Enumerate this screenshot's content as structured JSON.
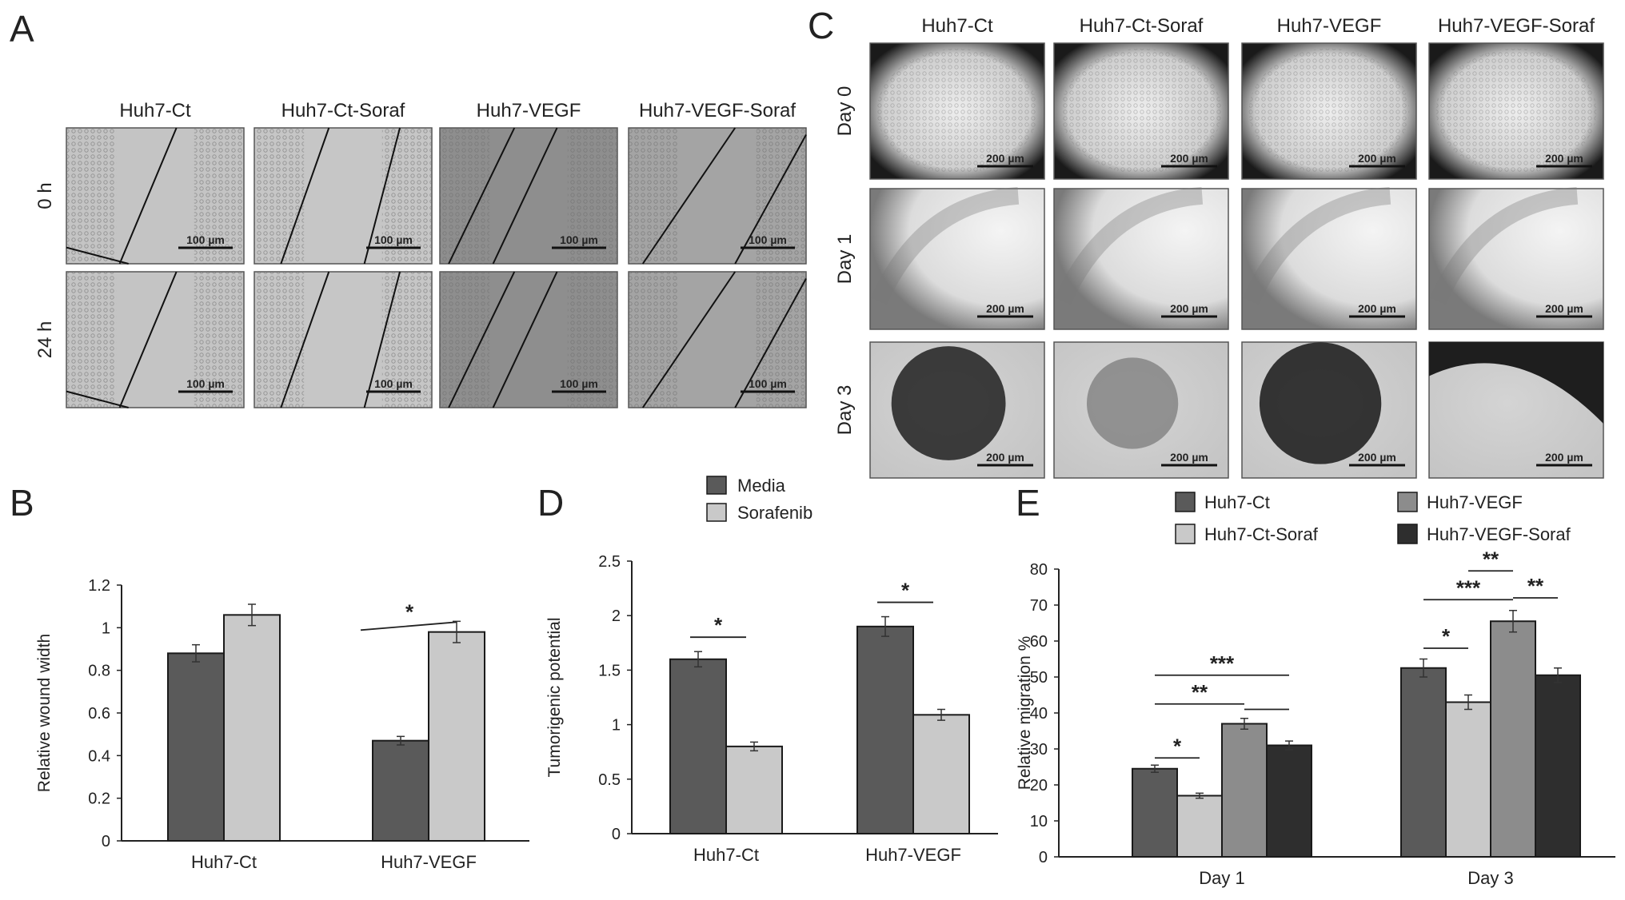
{
  "panels": {
    "A": {
      "letter": "A",
      "columns": [
        "Huh7-Ct",
        "Huh7-Ct-Soraf",
        "Huh7-VEGF",
        "Huh7-VEGF-Soraf"
      ],
      "rows": [
        "0 h",
        "24 h"
      ],
      "scale_bar": "100 µm",
      "image_tones": [
        "#c4c4c4",
        "#c6c6c6",
        "#8e8e8e",
        "#a4a4a4"
      ]
    },
    "C": {
      "letter": "C",
      "columns": [
        "Huh7-Ct",
        "Huh7-Ct-Soraf",
        "Huh7-VEGF",
        "Huh7-VEGF-Soraf"
      ],
      "rows": [
        "Day 0",
        "Day 1",
        "Day 3"
      ],
      "scale_bar": "200 µm"
    },
    "B": {
      "letter": "B"
    },
    "D": {
      "letter": "D"
    },
    "E": {
      "letter": "E"
    }
  },
  "chart_data": [
    {
      "panel": "B",
      "type": "bar",
      "ylabel": "Relative wound width",
      "xlabel": "",
      "ylim": [
        0,
        1.2
      ],
      "yticks": [
        "0",
        "0.2",
        "0.4",
        "0.6",
        "0.8",
        "1",
        "1.2"
      ],
      "categories": [
        "Huh7-Ct",
        "Huh7-VEGF"
      ],
      "series": [
        {
          "values": [
            0.88,
            0.47
          ],
          "errors": [
            0.04,
            0.02
          ],
          "color": "#5a5a5a"
        },
        {
          "values": [
            1.06,
            0.98
          ],
          "errors": [
            0.05,
            0.05
          ],
          "color": "#c9c9c9"
        }
      ],
      "significance": [
        {
          "category": 1,
          "label": "*"
        }
      ]
    },
    {
      "panel": "D",
      "type": "bar",
      "ylabel": "Tumorigenic potential",
      "xlabel": "",
      "ylim": [
        0,
        2.5
      ],
      "yticks": [
        "0",
        "0.5",
        "1",
        "1.5",
        "2",
        "2.5"
      ],
      "categories": [
        "Huh7-Ct",
        "Huh7-VEGF"
      ],
      "legend": [
        "Media",
        "Sorafenib"
      ],
      "series": [
        {
          "name": "Media",
          "values": [
            1.6,
            1.9
          ],
          "errors": [
            0.07,
            0.09
          ],
          "color": "#5a5a5a"
        },
        {
          "name": "Sorafenib",
          "values": [
            0.8,
            1.09
          ],
          "errors": [
            0.04,
            0.05
          ],
          "color": "#c9c9c9"
        }
      ],
      "significance": [
        {
          "category": 0,
          "label": "*"
        },
        {
          "category": 1,
          "label": "*"
        }
      ]
    },
    {
      "panel": "E",
      "type": "bar",
      "ylabel": "Relative migration %",
      "xlabel": "",
      "ylim": [
        0,
        80
      ],
      "yticks": [
        "0",
        "10",
        "20",
        "30",
        "40",
        "50",
        "60",
        "70",
        "80"
      ],
      "categories": [
        "Day 1",
        "Day 3"
      ],
      "legend": [
        "Huh7-Ct",
        "Huh7-VEGF",
        "Huh7-Ct-Soraf",
        "Huh7-VEGF-Soraf"
      ],
      "series": [
        {
          "name": "Huh7-Ct",
          "values": [
            24.5,
            52.5
          ],
          "errors": [
            1.0,
            2.5
          ],
          "color": "#5a5a5a"
        },
        {
          "name": "Huh7-Ct-Soraf",
          "values": [
            17.0,
            43.0
          ],
          "errors": [
            0.7,
            2.0
          ],
          "color": "#c9c9c9"
        },
        {
          "name": "Huh7-VEGF",
          "values": [
            37.0,
            65.5
          ],
          "errors": [
            1.5,
            3.0
          ],
          "color": "#8c8c8c"
        },
        {
          "name": "Huh7-VEGF-Soraf",
          "values": [
            31.0,
            50.5
          ],
          "errors": [
            1.2,
            2.0
          ],
          "color": "#2e2e2e"
        }
      ],
      "significance": [
        {
          "category": 0,
          "from": 0,
          "to": 1,
          "label": "*"
        },
        {
          "category": 0,
          "from": 0,
          "to": 2,
          "label": "**"
        },
        {
          "category": 0,
          "from": 0,
          "to": 3,
          "label": "***"
        },
        {
          "category": 0,
          "from": 2,
          "to": 3,
          "label": ""
        },
        {
          "category": 1,
          "from": 0,
          "to": 1,
          "label": "*"
        },
        {
          "category": 1,
          "from": 0,
          "to": 2,
          "label": "***"
        },
        {
          "category": 1,
          "from": 1,
          "to": 2,
          "label": "**"
        },
        {
          "category": 1,
          "from": 2,
          "to": 3,
          "label": "**"
        }
      ]
    }
  ]
}
